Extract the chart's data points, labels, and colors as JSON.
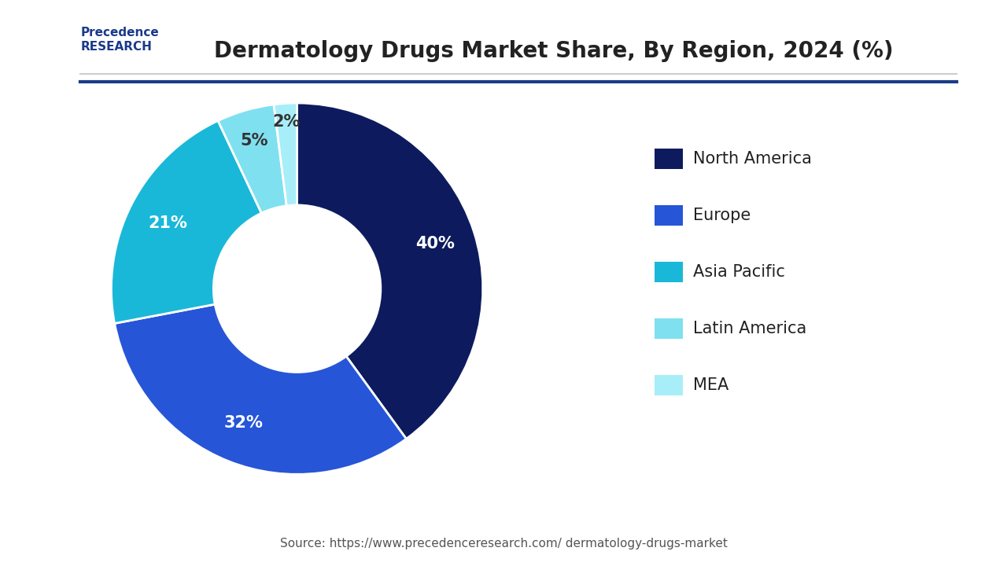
{
  "title": "Dermatology Drugs Market Share, By Region, 2024 (%)",
  "slices": [
    40,
    32,
    21,
    5,
    2
  ],
  "labels": [
    "North America",
    "Europe",
    "Asia Pacific",
    "Latin America",
    "MEA"
  ],
  "pct_labels": [
    "40%",
    "32%",
    "21%",
    "5%",
    "2%"
  ],
  "colors": [
    "#0d1b5e",
    "#2655d8",
    "#1ab8d8",
    "#7fe0f0",
    "#a8eef8"
  ],
  "startangle": 90,
  "source_text": "Source: https://www.precedenceresearch.com/ dermatology-drugs-market",
  "background_color": "#ffffff",
  "title_fontsize": 20,
  "legend_fontsize": 15,
  "pct_fontsize": 15
}
